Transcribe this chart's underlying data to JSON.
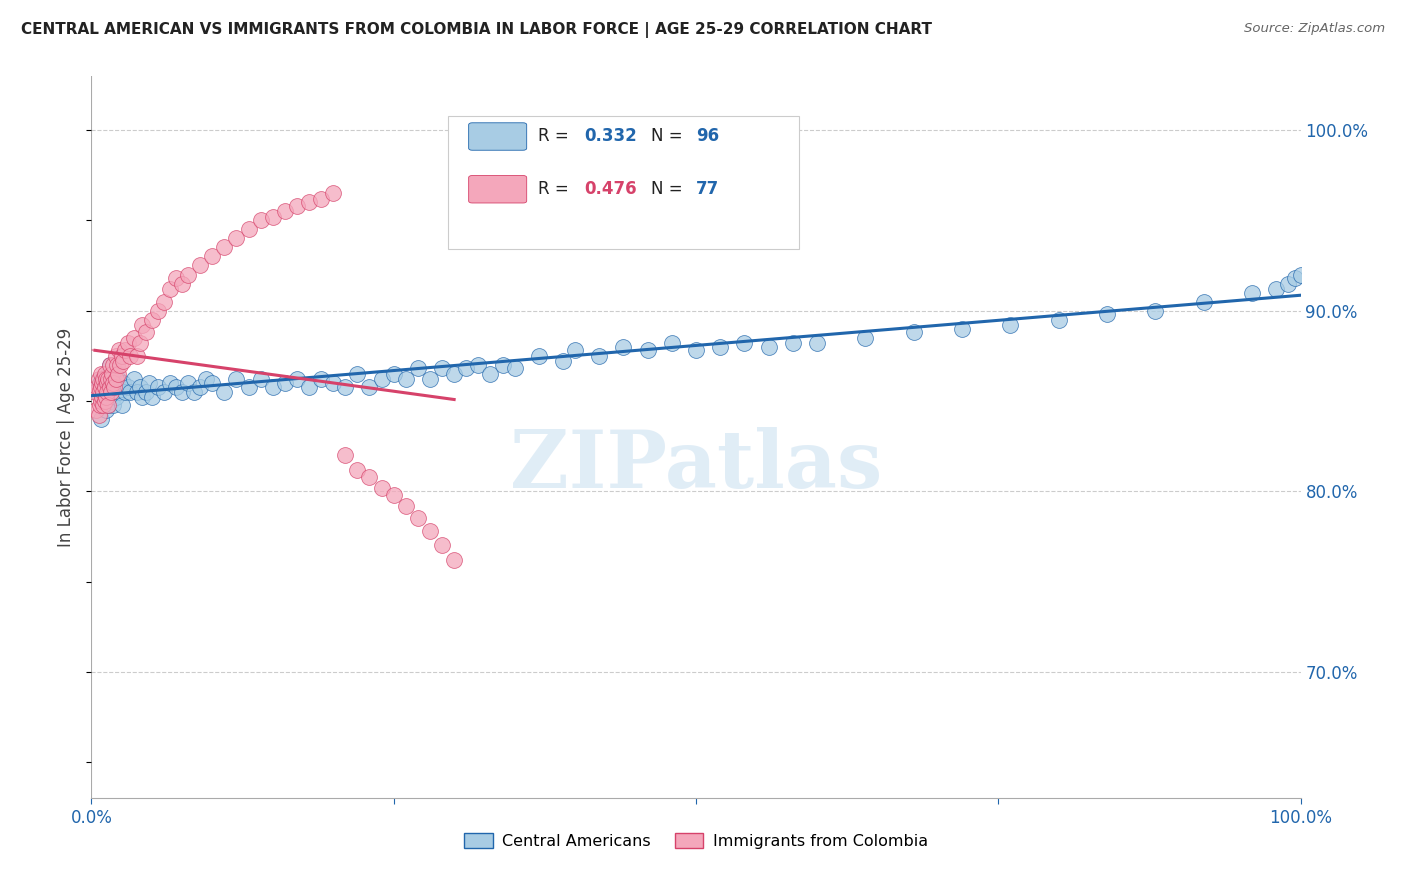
{
  "title": "CENTRAL AMERICAN VS IMMIGRANTS FROM COLOMBIA IN LABOR FORCE | AGE 25-29 CORRELATION CHART",
  "source": "Source: ZipAtlas.com",
  "ylabel": "In Labor Force | Age 25-29",
  "R1": "0.332",
  "N1": "96",
  "R2": "0.476",
  "N2": "77",
  "color_blue": "#a8cce4",
  "color_pink": "#f4a7bb",
  "line_color_blue": "#2166ac",
  "line_color_pink": "#d6426a",
  "watermark": "ZIPatlas",
  "legend_label1": "Central Americans",
  "legend_label2": "Immigrants from Colombia",
  "blue_scatter_x": [
    0.005,
    0.007,
    0.008,
    0.009,
    0.01,
    0.01,
    0.011,
    0.012,
    0.012,
    0.013,
    0.014,
    0.014,
    0.015,
    0.015,
    0.016,
    0.017,
    0.018,
    0.018,
    0.019,
    0.02,
    0.021,
    0.022,
    0.023,
    0.025,
    0.026,
    0.028,
    0.03,
    0.032,
    0.035,
    0.038,
    0.04,
    0.042,
    0.045,
    0.048,
    0.05,
    0.055,
    0.06,
    0.065,
    0.07,
    0.075,
    0.08,
    0.085,
    0.09,
    0.095,
    0.1,
    0.11,
    0.12,
    0.13,
    0.14,
    0.15,
    0.16,
    0.17,
    0.18,
    0.19,
    0.2,
    0.21,
    0.22,
    0.23,
    0.24,
    0.25,
    0.26,
    0.27,
    0.28,
    0.29,
    0.3,
    0.31,
    0.32,
    0.33,
    0.34,
    0.35,
    0.37,
    0.39,
    0.4,
    0.42,
    0.44,
    0.46,
    0.48,
    0.5,
    0.52,
    0.54,
    0.56,
    0.58,
    0.6,
    0.64,
    0.68,
    0.72,
    0.76,
    0.8,
    0.84,
    0.88,
    0.92,
    0.96,
    0.98,
    0.99,
    0.995,
    1.0
  ],
  "blue_scatter_y": [
    0.855,
    0.86,
    0.84,
    0.862,
    0.85,
    0.858,
    0.852,
    0.858,
    0.845,
    0.862,
    0.848,
    0.865,
    0.855,
    0.87,
    0.85,
    0.862,
    0.855,
    0.848,
    0.86,
    0.852,
    0.858,
    0.862,
    0.855,
    0.848,
    0.86,
    0.855,
    0.858,
    0.855,
    0.862,
    0.855,
    0.858,
    0.852,
    0.855,
    0.86,
    0.852,
    0.858,
    0.855,
    0.86,
    0.858,
    0.855,
    0.86,
    0.855,
    0.858,
    0.862,
    0.86,
    0.855,
    0.862,
    0.858,
    0.862,
    0.858,
    0.86,
    0.862,
    0.858,
    0.862,
    0.86,
    0.858,
    0.865,
    0.858,
    0.862,
    0.865,
    0.862,
    0.868,
    0.862,
    0.868,
    0.865,
    0.868,
    0.87,
    0.865,
    0.87,
    0.868,
    0.875,
    0.872,
    0.878,
    0.875,
    0.88,
    0.878,
    0.882,
    0.878,
    0.88,
    0.882,
    0.88,
    0.882,
    0.882,
    0.885,
    0.888,
    0.89,
    0.892,
    0.895,
    0.898,
    0.9,
    0.905,
    0.91,
    0.912,
    0.915,
    0.918,
    0.92
  ],
  "pink_scatter_x": [
    0.003,
    0.004,
    0.005,
    0.006,
    0.006,
    0.007,
    0.007,
    0.008,
    0.008,
    0.008,
    0.009,
    0.009,
    0.01,
    0.01,
    0.01,
    0.011,
    0.011,
    0.011,
    0.012,
    0.012,
    0.013,
    0.013,
    0.014,
    0.014,
    0.015,
    0.015,
    0.016,
    0.016,
    0.017,
    0.018,
    0.018,
    0.019,
    0.02,
    0.02,
    0.021,
    0.022,
    0.023,
    0.024,
    0.025,
    0.026,
    0.028,
    0.03,
    0.032,
    0.035,
    0.038,
    0.04,
    0.042,
    0.045,
    0.05,
    0.055,
    0.06,
    0.065,
    0.07,
    0.075,
    0.08,
    0.09,
    0.1,
    0.11,
    0.12,
    0.13,
    0.14,
    0.15,
    0.16,
    0.17,
    0.18,
    0.19,
    0.2,
    0.21,
    0.22,
    0.23,
    0.24,
    0.25,
    0.26,
    0.27,
    0.28,
    0.29,
    0.3
  ],
  "pink_scatter_y": [
    0.855,
    0.845,
    0.858,
    0.842,
    0.862,
    0.848,
    0.856,
    0.85,
    0.858,
    0.865,
    0.852,
    0.86,
    0.848,
    0.855,
    0.862,
    0.85,
    0.858,
    0.865,
    0.852,
    0.862,
    0.86,
    0.855,
    0.862,
    0.848,
    0.858,
    0.87,
    0.855,
    0.862,
    0.865,
    0.86,
    0.87,
    0.858,
    0.862,
    0.875,
    0.87,
    0.865,
    0.878,
    0.87,
    0.875,
    0.872,
    0.878,
    0.882,
    0.875,
    0.885,
    0.875,
    0.882,
    0.892,
    0.888,
    0.895,
    0.9,
    0.905,
    0.912,
    0.918,
    0.915,
    0.92,
    0.925,
    0.93,
    0.935,
    0.94,
    0.945,
    0.95,
    0.952,
    0.955,
    0.958,
    0.96,
    0.962,
    0.965,
    0.82,
    0.812,
    0.808,
    0.802,
    0.798,
    0.792,
    0.785,
    0.778,
    0.77,
    0.762
  ]
}
